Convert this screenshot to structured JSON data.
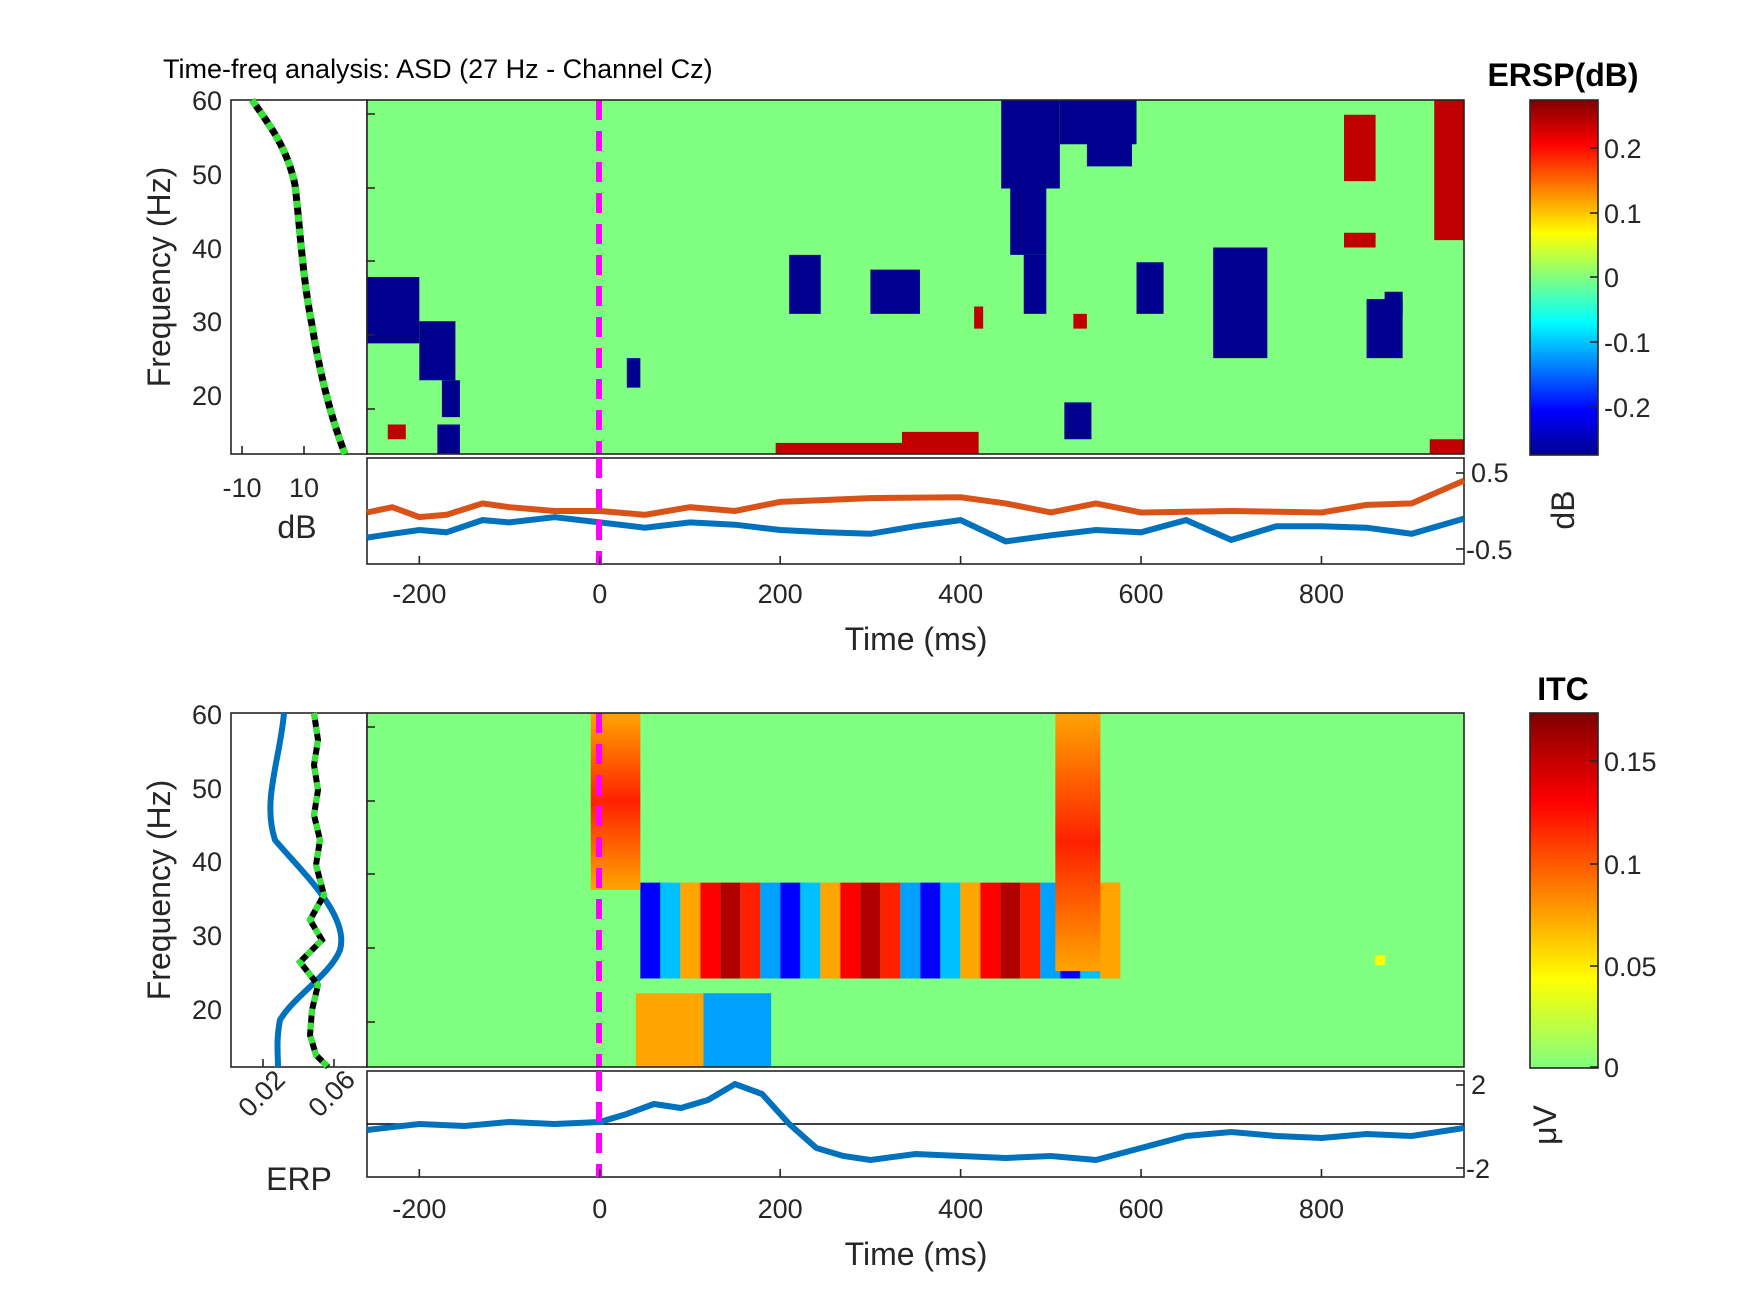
{
  "title": "Time-freq analysis: ASD (27 Hz - Channel Cz)",
  "colors": {
    "ersp_background": "#80ff80",
    "blue_cluster": "#00008f",
    "red_cluster": "#800000",
    "stim_line": "#ff00ff",
    "series_blue": "#0072bd",
    "series_orange": "#d95319",
    "marginal_green": "#33e633"
  },
  "ersp_panel": {
    "ylabel": "Frequency (Hz)",
    "xlabel": "Time (ms)",
    "y_ticks": [
      "60",
      "50",
      "40",
      "30",
      "20"
    ],
    "x_ticks": [
      "-200",
      "0",
      "200",
      "400",
      "600",
      "800"
    ],
    "left_x_ticks": [
      "-10",
      "10"
    ],
    "left_xlabel": "dB",
    "bottom_right_ticks": [
      "0.5",
      "-0.5"
    ],
    "bottom_right_label": "dB",
    "colorbar_title": "ERSP(dB)",
    "colorbar_ticks": [
      "0.2",
      "0.1",
      "0",
      "-0.1",
      "-0.2"
    ]
  },
  "itc_panel": {
    "ylabel": "Frequency (Hz)",
    "xlabel": "Time (ms)",
    "y_ticks": [
      "60",
      "50",
      "40",
      "30",
      "20"
    ],
    "x_ticks": [
      "-200",
      "0",
      "200",
      "400",
      "600",
      "800"
    ],
    "left_x_ticks": [
      "0.02",
      "0.06"
    ],
    "left_xlabel": "ERP",
    "bottom_right_ticks": [
      "2",
      "-2"
    ],
    "bottom_right_label": "μV",
    "colorbar_title": "ITC",
    "colorbar_ticks": [
      "0.15",
      "0.1",
      "0.05",
      "0"
    ]
  },
  "chart_data": [
    {
      "type": "heatmap",
      "name": "ERSP",
      "xlim": [
        -258,
        958
      ],
      "ylim": [
        12,
        60
      ],
      "clim": [
        -0.27,
        0.27
      ],
      "stimulus_time": 0,
      "blue_clusters": [
        {
          "t": [
            -258,
            -200
          ],
          "f": [
            27,
            36
          ]
        },
        {
          "t": [
            -200,
            -160
          ],
          "f": [
            22,
            30
          ]
        },
        {
          "t": [
            -175,
            -155
          ],
          "f": [
            17,
            22
          ]
        },
        {
          "t": [
            -180,
            -155
          ],
          "f": [
            12,
            16
          ]
        },
        {
          "t": [
            30,
            45
          ],
          "f": [
            21,
            25
          ]
        },
        {
          "t": [
            210,
            245
          ],
          "f": [
            31,
            39
          ]
        },
        {
          "t": [
            300,
            355
          ],
          "f": [
            31,
            37
          ]
        },
        {
          "t": [
            445,
            510
          ],
          "f": [
            48,
            60
          ]
        },
        {
          "t": [
            455,
            495
          ],
          "f": [
            39,
            48
          ]
        },
        {
          "t": [
            470,
            495
          ],
          "f": [
            31,
            39
          ]
        },
        {
          "t": [
            510,
            595
          ],
          "f": [
            54,
            60
          ]
        },
        {
          "t": [
            540,
            590
          ],
          "f": [
            51,
            55
          ]
        },
        {
          "t": [
            515,
            545
          ],
          "f": [
            14,
            19
          ]
        },
        {
          "t": [
            595,
            625
          ],
          "f": [
            31,
            38
          ]
        },
        {
          "t": [
            680,
            740
          ],
          "f": [
            25,
            40
          ]
        },
        {
          "t": [
            850,
            890
          ],
          "f": [
            25,
            33
          ]
        },
        {
          "t": [
            870,
            890
          ],
          "f": [
            31,
            34
          ]
        }
      ],
      "red_clusters": [
        {
          "t": [
            -235,
            -215
          ],
          "f": [
            14,
            16
          ]
        },
        {
          "t": [
            195,
            335
          ],
          "f": [
            12,
            13.5
          ]
        },
        {
          "t": [
            335,
            420
          ],
          "f": [
            12,
            15
          ]
        },
        {
          "t": [
            415,
            425
          ],
          "f": [
            29,
            32
          ]
        },
        {
          "t": [
            525,
            540
          ],
          "f": [
            29,
            31
          ]
        },
        {
          "t": [
            825,
            860
          ],
          "f": [
            49,
            58
          ]
        },
        {
          "t": [
            825,
            860
          ],
          "f": [
            40,
            42
          ]
        },
        {
          "t": [
            925,
            958
          ],
          "f": [
            41,
            60
          ]
        },
        {
          "t": [
            920,
            958
          ],
          "f": [
            12,
            14
          ]
        }
      ],
      "bottom_series": [
        {
          "color": "orange",
          "t": [
            -258,
            -230,
            -200,
            -170,
            -130,
            -100,
            -50,
            0,
            50,
            100,
            150,
            200,
            300,
            400,
            450,
            500,
            550,
            600,
            700,
            800,
            850,
            900,
            958
          ],
          "v": [
            -0.02,
            0.05,
            -0.08,
            -0.05,
            0.1,
            0.05,
            0.0,
            0.0,
            -0.05,
            0.05,
            0.0,
            0.12,
            0.17,
            0.18,
            0.1,
            -0.02,
            0.1,
            -0.02,
            0.0,
            -0.02,
            0.08,
            0.1,
            0.4
          ]
        },
        {
          "color": "blue",
          "t": [
            -258,
            -230,
            -200,
            -170,
            -130,
            -100,
            -50,
            0,
            50,
            100,
            150,
            200,
            250,
            300,
            350,
            400,
            450,
            500,
            550,
            600,
            650,
            700,
            750,
            800,
            850,
            900,
            958
          ],
          "v": [
            -0.35,
            -0.3,
            -0.25,
            -0.28,
            -0.12,
            -0.15,
            -0.08,
            -0.15,
            -0.22,
            -0.15,
            -0.18,
            -0.25,
            -0.28,
            -0.3,
            -0.2,
            -0.12,
            -0.4,
            -0.32,
            -0.25,
            -0.28,
            -0.12,
            -0.38,
            -0.2,
            -0.2,
            -0.22,
            -0.3,
            -0.1
          ]
        }
      ]
    },
    {
      "type": "heatmap",
      "name": "ITC",
      "xlim": [
        -258,
        958
      ],
      "ylim": [
        12,
        60
      ],
      "clim": [
        0,
        0.175
      ],
      "stimulus_time": 0,
      "band": {
        "t": [
          45,
          555
        ],
        "f": [
          24,
          37
        ]
      },
      "onset_streak": {
        "t": [
          -10,
          45
        ],
        "f": [
          36,
          60
        ]
      },
      "offset_streak": {
        "t": [
          505,
          555
        ],
        "f": [
          25,
          60
        ]
      },
      "low_patch": {
        "t": [
          40,
          190
        ],
        "f": [
          12,
          22
        ]
      },
      "isolated_pixel": {
        "t": 865,
        "f": 26.5
      },
      "erp": {
        "t": [
          -258,
          -200,
          -150,
          -100,
          -50,
          0,
          30,
          60,
          90,
          120,
          150,
          180,
          210,
          240,
          270,
          300,
          350,
          400,
          450,
          500,
          550,
          600,
          650,
          700,
          750,
          800,
          850,
          900,
          958
        ],
        "v": [
          -0.3,
          0.0,
          -0.1,
          0.1,
          0.0,
          0.1,
          0.5,
          1.0,
          0.8,
          1.2,
          2.0,
          1.5,
          0.0,
          -1.2,
          -1.6,
          -1.8,
          -1.5,
          -1.6,
          -1.7,
          -1.6,
          -1.8,
          -1.2,
          -0.6,
          -0.4,
          -0.6,
          -0.7,
          -0.5,
          -0.6,
          -0.2
        ]
      },
      "left_series": [
        {
          "color": "blue",
          "f": [
            12,
            15,
            18,
            20,
            22,
            25,
            28,
            30,
            33,
            36,
            40,
            45,
            50,
            55,
            60
          ],
          "v": [
            0.025,
            0.025,
            0.028,
            0.035,
            0.05,
            0.06,
            0.07,
            0.068,
            0.058,
            0.045,
            0.03,
            0.022,
            0.024,
            0.028,
            0.03
          ]
        },
        {
          "color": "green-dashed",
          "f": [
            12,
            15,
            18,
            21,
            24,
            26,
            28,
            30,
            32,
            34,
            36,
            38,
            42,
            46,
            50,
            54,
            58,
            60
          ],
          "v": [
            0.05,
            0.045,
            0.042,
            0.044,
            0.048,
            0.04,
            0.052,
            0.047,
            0.05,
            0.045,
            0.05,
            0.044,
            0.046,
            0.042,
            0.044,
            0.046,
            0.043,
            0.045
          ]
        }
      ]
    }
  ]
}
